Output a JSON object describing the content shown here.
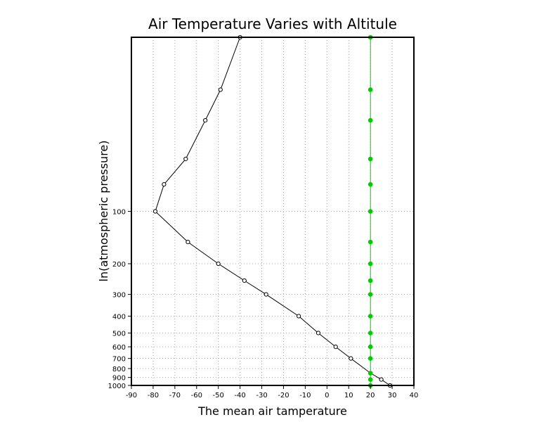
{
  "chart_data": {
    "type": "line",
    "title": "Air Temperature Varies with Altitule",
    "xlabel": "The mean air tamperature",
    "ylabel": "ln(atmospheric pressure)",
    "xlim": [
      -90,
      40
    ],
    "ylim": [
      1000,
      10
    ],
    "y_scale": "log",
    "grid": true,
    "x_ticks": [
      -90,
      -80,
      -70,
      -60,
      -50,
      -40,
      -30,
      -20,
      -10,
      0,
      10,
      20,
      30,
      40
    ],
    "x_tick_labels": [
      "-90",
      "-80",
      "-70",
      "-60",
      "-50",
      "-40",
      "-30",
      "-20",
      "-10",
      "0",
      "10",
      "20",
      "30",
      "40"
    ],
    "y_ticks": [
      1000,
      900,
      800,
      700,
      600,
      500,
      400,
      300,
      200,
      100
    ],
    "y_tick_labels": [
      "1000",
      "900",
      "800",
      "700",
      "600",
      "500",
      "400",
      "300",
      "200",
      "100"
    ],
    "series": [
      {
        "color": "#000000",
        "marker": "open-circle",
        "points": [
          {
            "p": 1000,
            "t": 29
          },
          {
            "p": 925,
            "t": 25
          },
          {
            "p": 850,
            "t": 20
          },
          {
            "p": 700,
            "t": 11
          },
          {
            "p": 600,
            "t": 4
          },
          {
            "p": 500,
            "t": -4
          },
          {
            "p": 400,
            "t": -13
          },
          {
            "p": 300,
            "t": -28
          },
          {
            "p": 250,
            "t": -38
          },
          {
            "p": 200,
            "t": -50
          },
          {
            "p": 150,
            "t": -64
          },
          {
            "p": 100,
            "t": -79
          },
          {
            "p": 70,
            "t": -75
          },
          {
            "p": 50,
            "t": -65
          },
          {
            "p": 30,
            "t": -56
          },
          {
            "p": 20,
            "t": -49
          },
          {
            "p": 10,
            "t": -40
          }
        ]
      },
      {
        "color": "#00cc00",
        "marker": "filled-circle",
        "points": [
          {
            "p": 1000,
            "t": 20
          },
          {
            "p": 925,
            "t": 20
          },
          {
            "p": 850,
            "t": 20
          },
          {
            "p": 700,
            "t": 20
          },
          {
            "p": 600,
            "t": 20
          },
          {
            "p": 500,
            "t": 20
          },
          {
            "p": 400,
            "t": 20
          },
          {
            "p": 300,
            "t": 20
          },
          {
            "p": 250,
            "t": 20
          },
          {
            "p": 200,
            "t": 20
          },
          {
            "p": 150,
            "t": 20
          },
          {
            "p": 100,
            "t": 20
          },
          {
            "p": 70,
            "t": 20
          },
          {
            "p": 50,
            "t": 20
          },
          {
            "p": 30,
            "t": 20
          },
          {
            "p": 20,
            "t": 20
          },
          {
            "p": 10,
            "t": 20
          }
        ]
      }
    ]
  }
}
